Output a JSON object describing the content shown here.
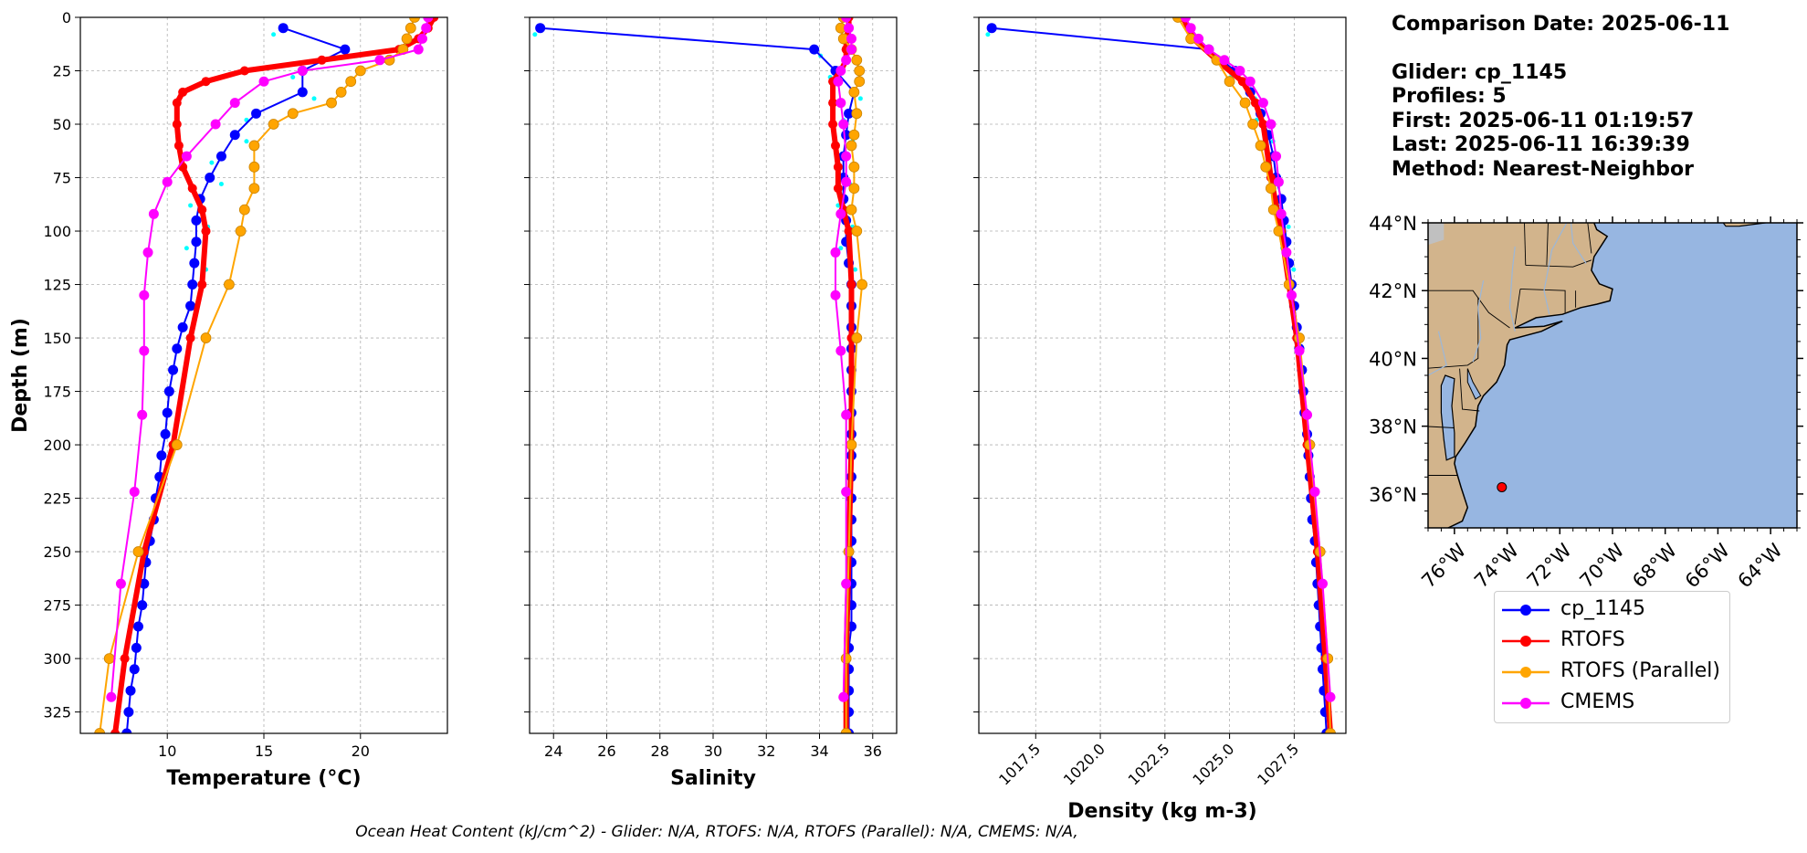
{
  "info": {
    "date_line": "Comparison Date: 2025-06-11",
    "glider_line": "Glider: cp_1145",
    "profiles_line": "Profiles: 5",
    "first_line": "First: 2025-06-11 01:19:57",
    "last_line": "Last: 2025-06-11 16:39:39",
    "method_line": "Method: Nearest-Neighbor"
  },
  "footnote": "Ocean Heat Content (kJ/cm^2) - Glider: N/A,  RTOFS: N/A,  RTOFS (Parallel): N/A,  CMEMS: N/A,",
  "colors": {
    "glider": "#0000ff",
    "rtofs": "#ff0000",
    "rtofs_parallel": "#ffa500",
    "cmems": "#ff00ff",
    "raw_obs": "#00ffff",
    "ocean": "#97b6e1",
    "land": "#d2b48c",
    "grid": "#b0b0b0"
  },
  "legend": [
    {
      "label": "cp_1145",
      "color": "#0000ff"
    },
    {
      "label": "RTOFS",
      "color": "#ff0000"
    },
    {
      "label": "RTOFS (Parallel)",
      "color": "#ffa500"
    },
    {
      "label": "CMEMS",
      "color": "#ff00ff"
    }
  ],
  "chart_data": [
    {
      "type": "line",
      "xlabel": "Temperature (°C)",
      "ylabel": "Depth (m)",
      "y_inverted": true,
      "xlim": [
        5.5,
        24.5
      ],
      "ylim": [
        335,
        0
      ],
      "x_ticks": [
        10,
        15,
        20
      ],
      "y_ticks": [
        0,
        25,
        50,
        75,
        100,
        125,
        150,
        175,
        200,
        225,
        250,
        275,
        300,
        325
      ],
      "grid": true,
      "series": [
        {
          "name": "cp_1145",
          "depth": [
            5,
            15,
            25,
            35,
            45,
            55,
            65,
            75,
            85,
            95,
            105,
            115,
            125,
            135,
            145,
            155,
            165,
            175,
            185,
            195,
            205,
            215,
            225,
            235,
            245,
            255,
            265,
            275,
            285,
            295,
            305,
            315,
            325,
            335
          ],
          "values": [
            16.0,
            19.2,
            17.0,
            17.0,
            14.6,
            13.5,
            12.8,
            12.2,
            11.7,
            11.5,
            11.5,
            11.4,
            11.3,
            11.2,
            10.8,
            10.5,
            10.3,
            10.1,
            10.0,
            9.9,
            9.7,
            9.6,
            9.4,
            9.3,
            9.1,
            8.9,
            8.8,
            8.7,
            8.5,
            8.4,
            8.3,
            8.1,
            8.0,
            7.9
          ]
        },
        {
          "name": "RTOFS",
          "depth": [
            0,
            5,
            10,
            15,
            20,
            25,
            30,
            35,
            40,
            50,
            60,
            70,
            80,
            90,
            100,
            125,
            150,
            200,
            250,
            300,
            335
          ],
          "values": [
            23.8,
            23.5,
            23.0,
            22.0,
            18.0,
            14.0,
            12.0,
            10.8,
            10.5,
            10.5,
            10.6,
            10.8,
            11.3,
            11.8,
            12.0,
            11.8,
            11.2,
            10.3,
            8.8,
            7.8,
            7.3
          ]
        },
        {
          "name": "RTOFS (Parallel)",
          "depth": [
            0,
            5,
            10,
            15,
            20,
            25,
            30,
            35,
            40,
            45,
            50,
            60,
            70,
            80,
            90,
            100,
            125,
            150,
            200,
            250,
            300,
            335
          ],
          "values": [
            22.8,
            22.6,
            22.4,
            22.2,
            21.5,
            20.0,
            19.5,
            19.0,
            18.5,
            16.5,
            15.5,
            14.5,
            14.5,
            14.5,
            14.0,
            13.8,
            13.2,
            12.0,
            10.5,
            8.5,
            7.0,
            6.5
          ]
        },
        {
          "name": "CMEMS",
          "depth": [
            0,
            5,
            10,
            15,
            20,
            25,
            30,
            40,
            50,
            65,
            77,
            92,
            110,
            130,
            156,
            186,
            222,
            265,
            318
          ],
          "values": [
            23.5,
            23.4,
            23.2,
            23.0,
            21.0,
            17.0,
            15.0,
            13.5,
            12.5,
            11.0,
            10.0,
            9.3,
            9.0,
            8.8,
            8.8,
            8.7,
            8.3,
            7.6,
            7.1
          ]
        }
      ]
    },
    {
      "type": "line",
      "xlabel": "Salinity",
      "xlim": [
        23.1,
        36.9
      ],
      "ylim": [
        335,
        0
      ],
      "x_ticks": [
        24,
        26,
        28,
        30,
        32,
        34,
        36
      ],
      "grid": true,
      "series": [
        {
          "name": "cp_1145",
          "depth": [
            5,
            15,
            25,
            35,
            45,
            55,
            65,
            75,
            85,
            95,
            105,
            115,
            125,
            135,
            145,
            155,
            165,
            175,
            185,
            195,
            205,
            215,
            225,
            235,
            245,
            255,
            265,
            275,
            285,
            295,
            305,
            315,
            325,
            335
          ],
          "values": [
            23.5,
            33.8,
            34.6,
            35.3,
            35.1,
            35.0,
            34.9,
            34.9,
            34.9,
            35.0,
            35.0,
            35.1,
            35.2,
            35.2,
            35.2,
            35.2,
            35.2,
            35.2,
            35.2,
            35.2,
            35.2,
            35.2,
            35.2,
            35.2,
            35.2,
            35.2,
            35.2,
            35.2,
            35.2,
            35.1,
            35.1,
            35.1,
            35.1,
            35.1
          ]
        },
        {
          "name": "RTOFS",
          "depth": [
            0,
            5,
            10,
            15,
            20,
            25,
            30,
            40,
            50,
            60,
            70,
            80,
            90,
            100,
            125,
            150,
            200,
            250,
            300,
            335
          ],
          "values": [
            35.1,
            35.1,
            35.0,
            35.0,
            35.0,
            34.8,
            34.5,
            34.5,
            34.5,
            34.6,
            34.7,
            34.7,
            34.9,
            35.1,
            35.2,
            35.2,
            35.2,
            35.1,
            35.0,
            35.0
          ]
        },
        {
          "name": "RTOFS (Parallel)",
          "depth": [
            0,
            5,
            10,
            15,
            20,
            25,
            30,
            35,
            45,
            55,
            60,
            70,
            80,
            90,
            100,
            125,
            150,
            200,
            250,
            300,
            335
          ],
          "values": [
            34.9,
            34.8,
            34.9,
            35.2,
            35.4,
            35.5,
            35.5,
            35.3,
            35.4,
            35.3,
            35.2,
            35.3,
            35.3,
            35.2,
            35.4,
            35.6,
            35.4,
            35.2,
            35.1,
            35.0,
            35.0
          ]
        },
        {
          "name": "CMEMS",
          "depth": [
            0,
            5,
            10,
            15,
            20,
            25,
            30,
            40,
            50,
            65,
            77,
            92,
            110,
            130,
            156,
            186,
            222,
            265,
            318
          ],
          "values": [
            35.0,
            35.1,
            35.2,
            35.2,
            35.0,
            34.8,
            34.7,
            34.8,
            34.9,
            35.0,
            35.0,
            34.8,
            34.6,
            34.6,
            34.8,
            35.0,
            35.0,
            35.0,
            34.9
          ]
        }
      ]
    },
    {
      "type": "line",
      "xlabel": "Density (kg m-3)",
      "xlim": [
        1015.3,
        1029.5
      ],
      "ylim": [
        335,
        0
      ],
      "x_ticks": [
        1017.5,
        1020.0,
        1022.5,
        1025.0,
        1027.5
      ],
      "grid": true,
      "series": [
        {
          "name": "cp_1145",
          "depth": [
            5,
            15,
            25,
            35,
            45,
            55,
            65,
            75,
            85,
            95,
            105,
            115,
            125,
            135,
            145,
            155,
            165,
            175,
            185,
            195,
            205,
            215,
            225,
            235,
            245,
            255,
            265,
            275,
            285,
            295,
            305,
            315,
            325,
            335
          ],
          "values": [
            1015.8,
            1024.2,
            1025.2,
            1025.8,
            1026.2,
            1026.5,
            1026.7,
            1026.8,
            1027.0,
            1027.1,
            1027.2,
            1027.3,
            1027.4,
            1027.5,
            1027.6,
            1027.7,
            1027.8,
            1027.85,
            1027.9,
            1028.0,
            1028.05,
            1028.1,
            1028.15,
            1028.2,
            1028.3,
            1028.35,
            1028.4,
            1028.45,
            1028.5,
            1028.55,
            1028.6,
            1028.65,
            1028.7,
            1028.75
          ]
        },
        {
          "name": "RTOFS",
          "depth": [
            0,
            10,
            20,
            30,
            40,
            50,
            75,
            100,
            150,
            200,
            250,
            300,
            335
          ],
          "values": [
            1023.2,
            1023.6,
            1024.5,
            1025.5,
            1026.0,
            1026.3,
            1026.6,
            1027.0,
            1027.6,
            1028.0,
            1028.4,
            1028.7,
            1028.9
          ]
        },
        {
          "name": "RTOFS (Parallel)",
          "depth": [
            0,
            10,
            20,
            30,
            40,
            50,
            60,
            70,
            80,
            90,
            100,
            125,
            150,
            200,
            250,
            300,
            335
          ],
          "values": [
            1023.0,
            1023.5,
            1024.5,
            1025.0,
            1025.6,
            1025.9,
            1026.2,
            1026.4,
            1026.6,
            1026.7,
            1026.9,
            1027.3,
            1027.7,
            1028.1,
            1028.5,
            1028.8,
            1028.9
          ]
        },
        {
          "name": "CMEMS",
          "depth": [
            0,
            5,
            10,
            15,
            20,
            25,
            30,
            40,
            50,
            65,
            77,
            92,
            110,
            130,
            156,
            186,
            222,
            265,
            318
          ],
          "values": [
            1023.3,
            1023.5,
            1023.8,
            1024.2,
            1024.8,
            1025.4,
            1025.8,
            1026.3,
            1026.6,
            1026.8,
            1026.9,
            1027.0,
            1027.2,
            1027.4,
            1027.7,
            1028.0,
            1028.3,
            1028.6,
            1028.9
          ]
        }
      ]
    },
    {
      "type": "map",
      "lat_ticks": [
        "44°N",
        "42°N",
        "40°N",
        "38°N",
        "36°N"
      ],
      "lon_ticks": [
        "76°W",
        "74°W",
        "72°W",
        "70°W",
        "68°W",
        "66°W",
        "64°W"
      ],
      "lon_range": [
        -77.0,
        -63.0
      ],
      "lat_range": [
        35.0,
        44.0
      ],
      "marker": {
        "lon": -74.2,
        "lat": 36.2,
        "color": "#ff0000"
      }
    }
  ]
}
